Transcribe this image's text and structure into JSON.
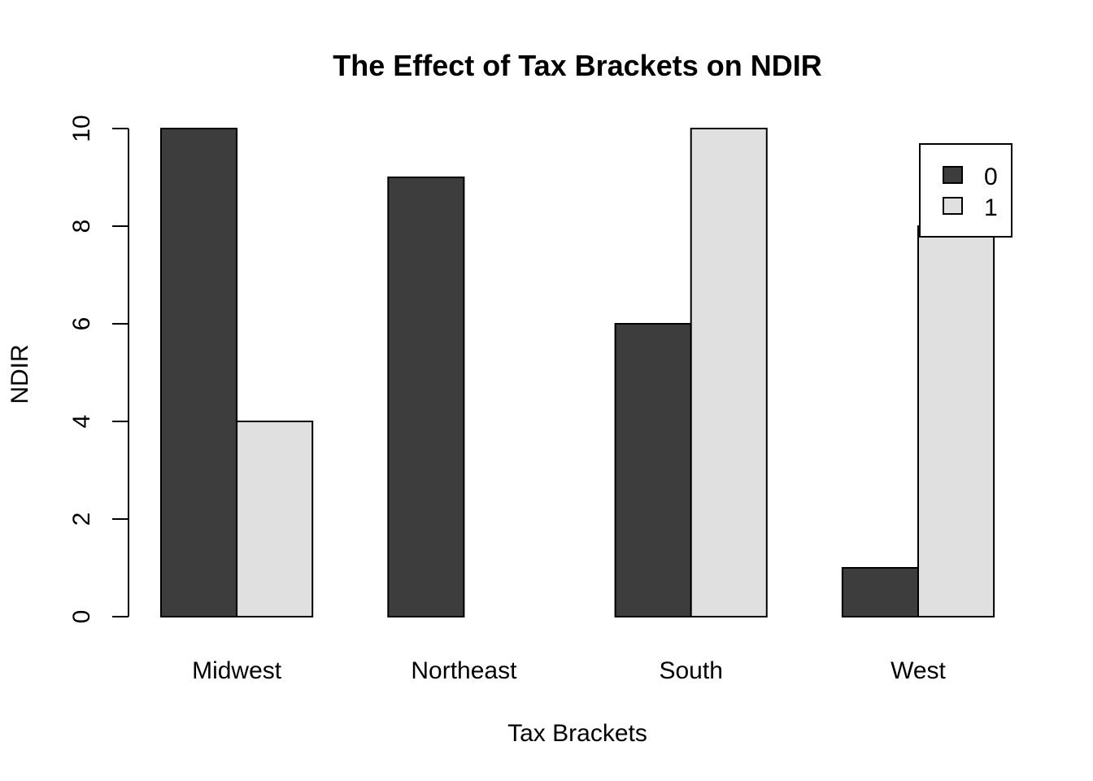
{
  "chart_data": {
    "type": "bar",
    "title": "The Effect of Tax Brackets on NDIR",
    "xlabel": "Tax Brackets",
    "ylabel": "NDIR",
    "categories": [
      "Midwest",
      "Northeast",
      "South",
      "West"
    ],
    "series": [
      {
        "name": "0",
        "values": [
          10,
          9,
          6,
          1
        ],
        "color": "#3d3d3d"
      },
      {
        "name": "1",
        "values": [
          4,
          0,
          10,
          8
        ],
        "color": "#e0e0e0"
      }
    ],
    "ylim": [
      0,
      10
    ],
    "yticks": [
      "0",
      "2",
      "4",
      "6",
      "8",
      "10"
    ],
    "grid": false,
    "legend_position": "top-right"
  }
}
